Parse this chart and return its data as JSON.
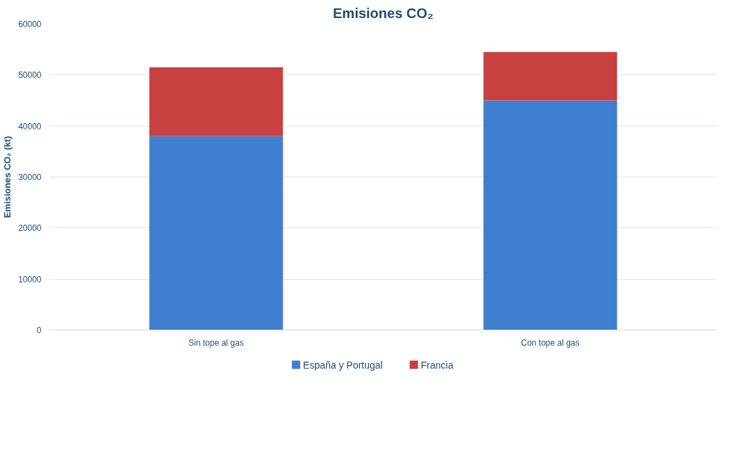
{
  "chart_data": {
    "type": "bar",
    "title": "Emisiones CO₂",
    "ylabel": "Emisiones CO₂ (kt)",
    "categories": [
      "Sin tope al gas",
      "Con tope al gas"
    ],
    "stacked": true,
    "series": [
      {
        "name": "España y Portugal",
        "color": "#3f7fcf",
        "values": [
          38000,
          45000
        ]
      },
      {
        "name": "Francia",
        "color": "#c94040",
        "values": [
          13500,
          9500
        ]
      }
    ],
    "ylim": [
      0,
      60000
    ],
    "yticks": [
      0,
      10000,
      20000,
      30000,
      40000,
      50000,
      60000
    ],
    "grid": "y",
    "legend": "bottom"
  }
}
